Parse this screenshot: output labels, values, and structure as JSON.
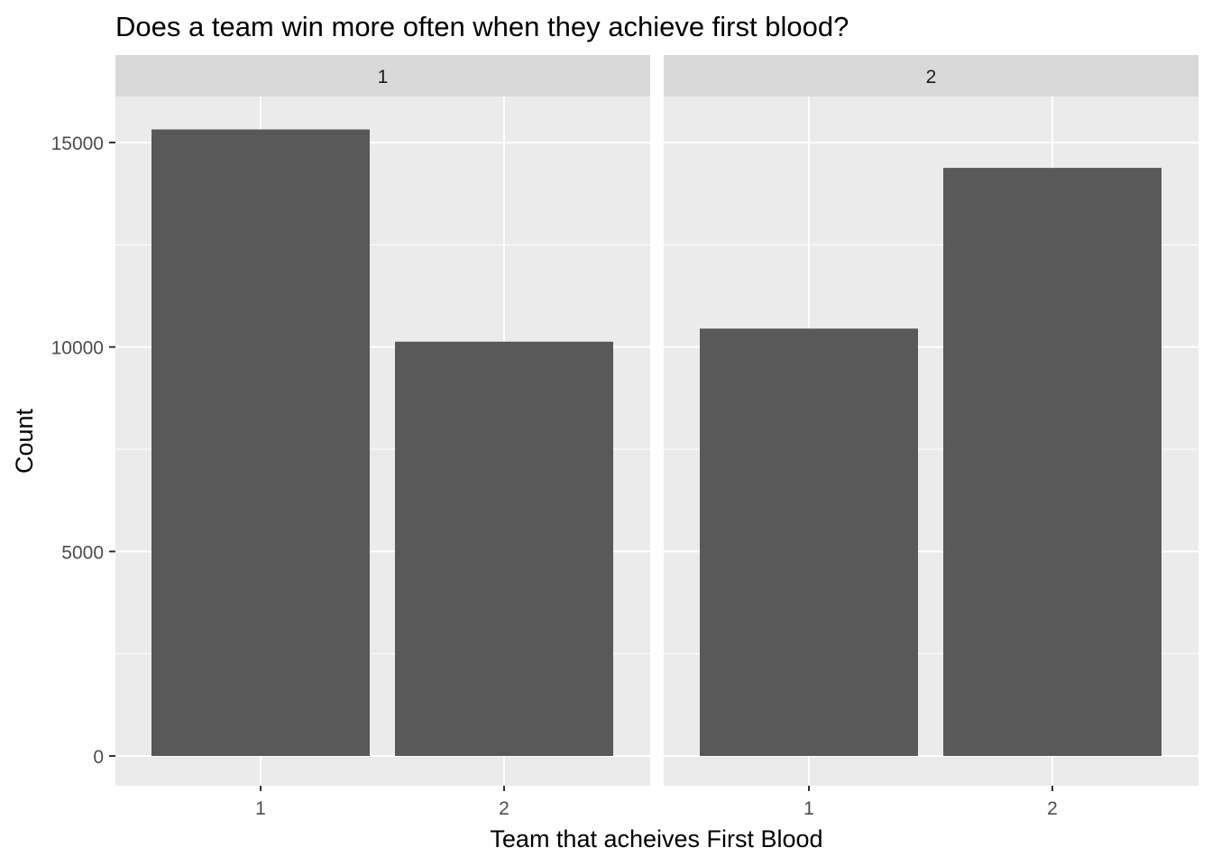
{
  "chart_data": {
    "type": "bar",
    "title": "Does a team win more often when they achieve first blood?",
    "xlabel": "Team that acheives First Blood",
    "ylabel": "Count",
    "ylim": [
      0,
      16500
    ],
    "yticks": [
      0,
      5000,
      10000,
      15000
    ],
    "ytick_labels": [
      "0",
      "5000",
      "10000",
      "15000"
    ],
    "grid": true,
    "legend": "none",
    "categories": [
      "1",
      "2"
    ],
    "facets": [
      {
        "label": "1",
        "values": [
          15320,
          10130
        ]
      },
      {
        "label": "2",
        "values": [
          10450,
          14380
        ]
      }
    ]
  },
  "colors": {
    "panel_background": "#ebebeb",
    "strip_background": "#d9d9d9",
    "bar_fill": "#595959",
    "grid_line": "#ffffff",
    "tick_mark": "#333333"
  }
}
